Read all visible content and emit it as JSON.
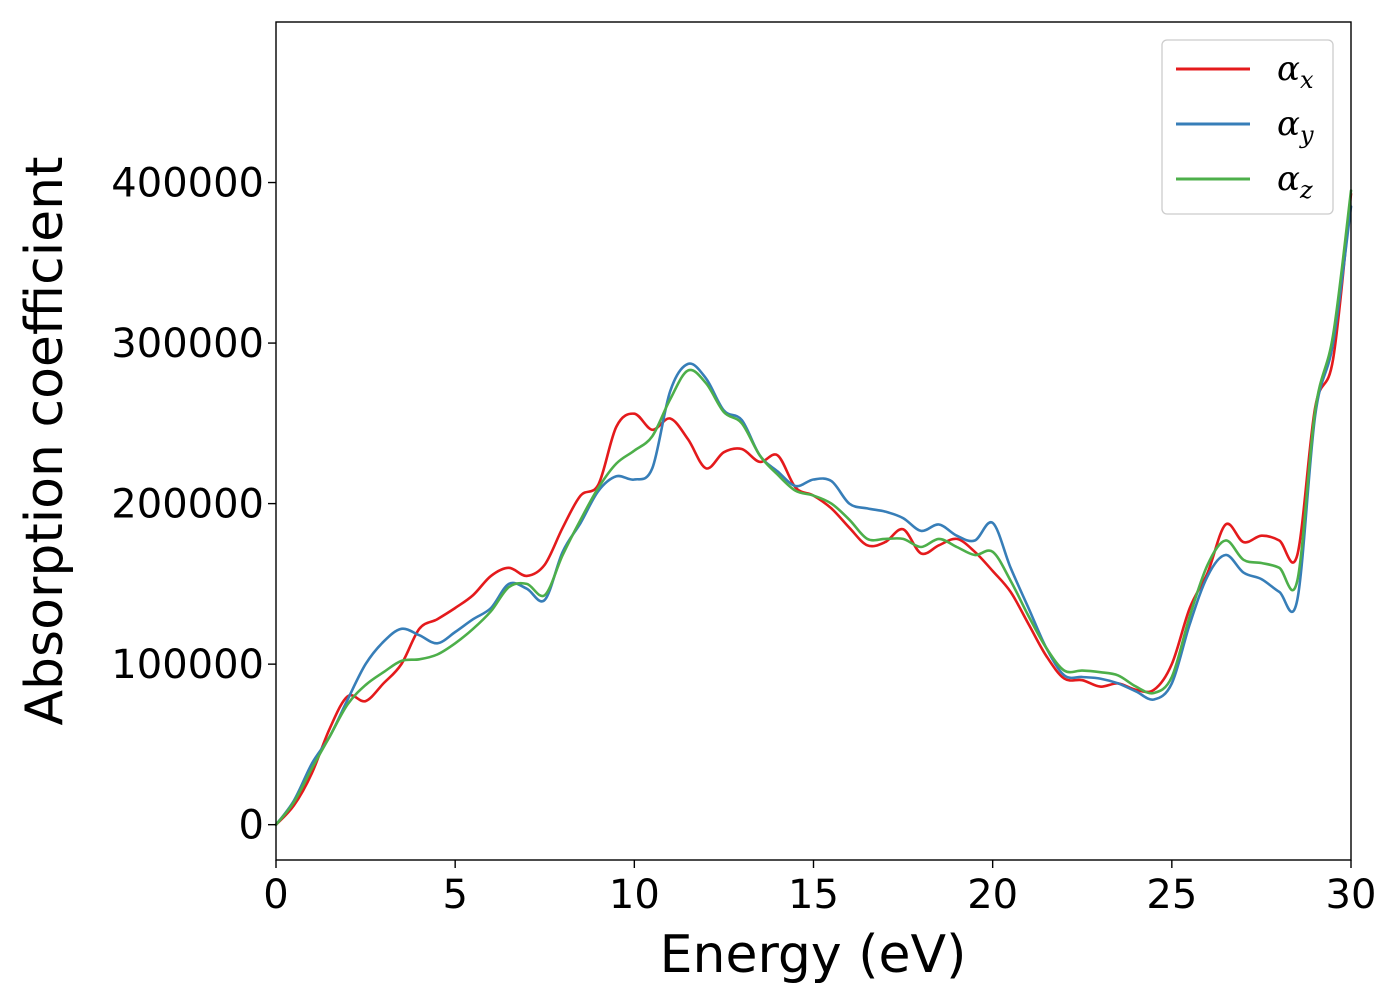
{
  "chart_data": {
    "type": "line",
    "title": "",
    "xlabel": "Energy (eV)",
    "ylabel": "Absorption coefficient",
    "xlim": [
      0,
      30
    ],
    "ylim": [
      -22000,
      500000
    ],
    "xticks": [
      0,
      5,
      10,
      15,
      20,
      25,
      30
    ],
    "xtick_labels": [
      "0",
      "5",
      "10",
      "15",
      "20",
      "25",
      "30"
    ],
    "yticks": [
      0,
      100000,
      200000,
      300000,
      400000
    ],
    "ytick_labels": [
      "0",
      "100000",
      "200000",
      "300000",
      "400000"
    ],
    "grid": false,
    "legend_position": "top-right",
    "series": [
      {
        "name": "α_x",
        "legend_symbol": "α",
        "legend_subscript": "x",
        "color": "#e41a1c",
        "x": [
          0,
          0.5,
          1,
          1.5,
          2,
          2.5,
          3,
          3.5,
          4,
          4.5,
          5,
          5.5,
          6,
          6.5,
          7,
          7.5,
          8,
          8.5,
          9,
          9.5,
          10,
          10.5,
          11,
          11.5,
          12,
          12.5,
          13,
          13.5,
          14,
          14.5,
          15,
          15.5,
          16,
          16.5,
          17,
          17.5,
          18,
          18.5,
          19,
          19.5,
          20,
          20.5,
          21,
          21.5,
          22,
          22.5,
          23,
          23.5,
          24,
          24.5,
          25,
          25.5,
          26,
          26.5,
          27,
          27.5,
          28,
          28.5,
          29,
          29.5,
          30
        ],
        "y": [
          0,
          12000,
          32000,
          60000,
          80000,
          77000,
          88000,
          100000,
          122000,
          128000,
          135000,
          143000,
          155000,
          160000,
          155000,
          162000,
          185000,
          205000,
          212000,
          248000,
          256000,
          246000,
          253000,
          240000,
          222000,
          232000,
          234000,
          226000,
          230000,
          210000,
          205000,
          197000,
          185000,
          174000,
          176000,
          184000,
          169000,
          174000,
          178000,
          170000,
          158000,
          145000,
          125000,
          105000,
          91000,
          90000,
          86000,
          88000,
          84000,
          84000,
          100000,
          135000,
          157000,
          187000,
          176000,
          180000,
          177000,
          168000,
          260000,
          290000,
          393000
        ]
      },
      {
        "name": "α_y",
        "legend_symbol": "α",
        "legend_subscript": "y",
        "color": "#377eb8",
        "x": [
          0,
          0.5,
          1,
          1.5,
          2,
          2.5,
          3,
          3.5,
          4,
          4.5,
          5,
          5.5,
          6,
          6.5,
          7,
          7.5,
          8,
          8.5,
          9,
          9.5,
          10,
          10.5,
          11,
          11.5,
          12,
          12.5,
          13,
          13.5,
          14,
          14.5,
          15,
          15.5,
          16,
          16.5,
          17,
          17.5,
          18,
          18.5,
          19,
          19.5,
          20,
          20.5,
          21,
          21.5,
          22,
          22.5,
          23,
          23.5,
          24,
          24.5,
          25,
          25.5,
          26,
          26.5,
          27,
          27.5,
          28,
          28.5,
          29,
          29.5,
          30
        ],
        "y": [
          0,
          15000,
          38000,
          55000,
          78000,
          100000,
          114000,
          122000,
          118000,
          113000,
          120000,
          128000,
          135000,
          150000,
          147000,
          140000,
          170000,
          188000,
          208000,
          217000,
          215000,
          222000,
          270000,
          287000,
          278000,
          258000,
          252000,
          230000,
          220000,
          211000,
          215000,
          214000,
          200000,
          197000,
          195000,
          191000,
          183000,
          187000,
          180000,
          177000,
          188000,
          160000,
          135000,
          110000,
          93000,
          92000,
          91000,
          88000,
          83000,
          78000,
          88000,
          125000,
          155000,
          168000,
          157000,
          153000,
          145000,
          140000,
          255000,
          300000,
          385000
        ]
      },
      {
        "name": "α_z",
        "legend_symbol": "α",
        "legend_subscript": "z",
        "color": "#4daf4a",
        "x": [
          0,
          0.5,
          1,
          1.5,
          2,
          2.5,
          3,
          3.5,
          4,
          4.5,
          5,
          5.5,
          6,
          6.5,
          7,
          7.5,
          8,
          8.5,
          9,
          9.5,
          10,
          10.5,
          11,
          11.5,
          12,
          12.5,
          13,
          13.5,
          14,
          14.5,
          15,
          15.5,
          16,
          16.5,
          17,
          17.5,
          18,
          18.5,
          19,
          19.5,
          20,
          20.5,
          21,
          21.5,
          22,
          22.5,
          23,
          23.5,
          24,
          24.5,
          25,
          25.5,
          26,
          26.5,
          27,
          27.5,
          28,
          28.5,
          29,
          29.5,
          30
        ],
        "y": [
          0,
          14000,
          35000,
          55000,
          75000,
          87000,
          95000,
          102000,
          103000,
          106000,
          113000,
          122000,
          133000,
          148000,
          150000,
          143000,
          168000,
          190000,
          210000,
          225000,
          233000,
          242000,
          265000,
          283000,
          275000,
          257000,
          250000,
          230000,
          218000,
          208000,
          205000,
          200000,
          190000,
          178000,
          178000,
          178000,
          173000,
          178000,
          173000,
          168000,
          170000,
          152000,
          130000,
          110000,
          96000,
          96000,
          95000,
          93000,
          86000,
          82000,
          92000,
          130000,
          162000,
          177000,
          165000,
          163000,
          160000,
          152000,
          258000,
          305000,
          395000
        ]
      }
    ]
  }
}
